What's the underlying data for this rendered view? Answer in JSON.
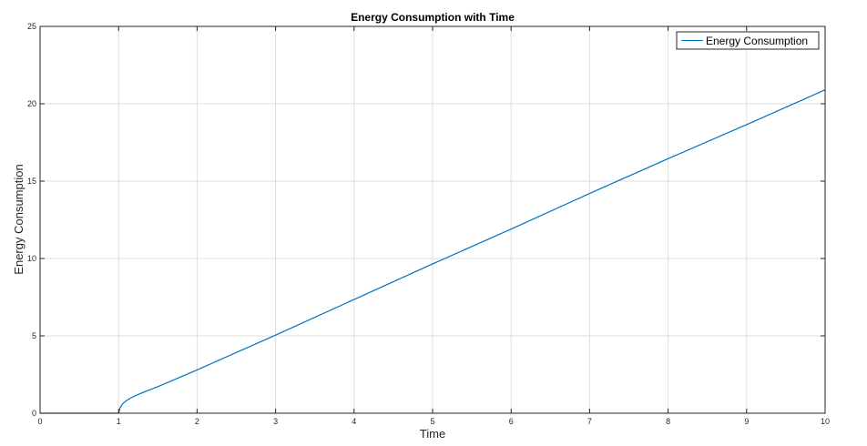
{
  "chart_data": {
    "type": "line",
    "title": "Energy Consumption with Time",
    "xlabel": "Time",
    "ylabel": "Energy Consumption",
    "xlim": [
      0,
      10
    ],
    "ylim": [
      0,
      25
    ],
    "xticks": [
      "0",
      "1",
      "2",
      "3",
      "4",
      "5",
      "6",
      "7",
      "8",
      "9",
      "10"
    ],
    "yticks": [
      "0",
      "5",
      "10",
      "15",
      "20",
      "25"
    ],
    "grid": true,
    "legend_position": "top-right",
    "series": [
      {
        "name": "Energy Consumption",
        "color": "#0072BD",
        "x": [
          0,
          1,
          1.02,
          1.05,
          1.1,
          1.15,
          1.2,
          1.3,
          1.5,
          2,
          3,
          4,
          5,
          6,
          7,
          8,
          9,
          10
        ],
        "y": [
          0,
          0,
          0.35,
          0.6,
          0.82,
          0.97,
          1.1,
          1.32,
          1.72,
          2.8,
          5.05,
          7.35,
          9.65,
          11.9,
          14.2,
          16.45,
          18.65,
          20.9
        ]
      }
    ]
  }
}
